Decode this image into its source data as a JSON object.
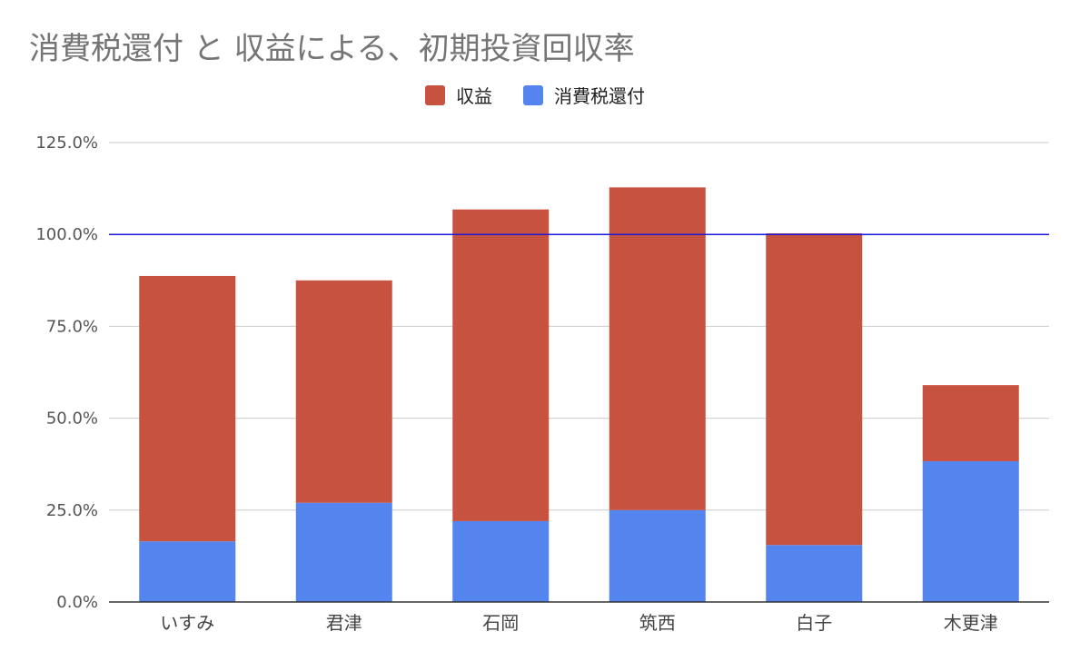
{
  "chart_data": {
    "type": "bar",
    "stacked": true,
    "title": "消費税還付 と 収益による、初期投資回収率",
    "categories": [
      "いすみ",
      "君津",
      "石岡",
      "筑西",
      "白子",
      "木更津"
    ],
    "series": [
      {
        "name": "消費税還付",
        "color": "#5484ed",
        "values": [
          16.5,
          27.0,
          22.0,
          25.0,
          15.5,
          38.3
        ]
      },
      {
        "name": "収益",
        "color": "#c85240",
        "values": [
          72.2,
          60.5,
          84.8,
          87.8,
          84.8,
          20.7
        ]
      }
    ],
    "legend": [
      {
        "name": "収益",
        "color": "#c85240"
      },
      {
        "name": "消費税還付",
        "color": "#5484ed"
      }
    ],
    "yticks": [
      "0.0%",
      "25.0%",
      "50.0%",
      "75.0%",
      "100.0%",
      "125.0%"
    ],
    "ylim": [
      0,
      125
    ],
    "reference_line": {
      "value": 100,
      "color": "#1a1ad6"
    },
    "grid": true,
    "legend_position": "top"
  }
}
